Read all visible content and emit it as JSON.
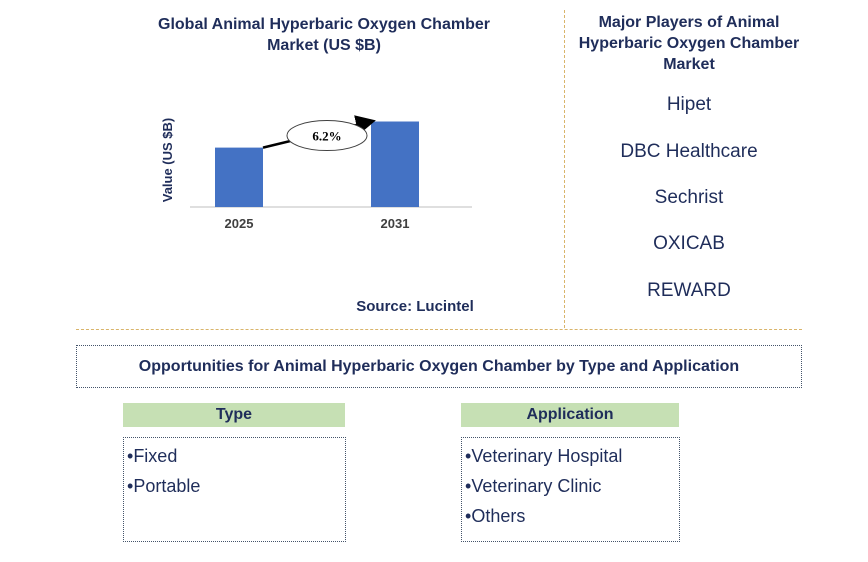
{
  "chart_data": {
    "type": "bar",
    "title": "Global Animal Hyperbaric Oxygen Chamber Market (US $B)",
    "ylabel": "Value (US $B)",
    "categories": [
      "2025",
      "2031"
    ],
    "values": [
      0.66,
      0.95
    ],
    "ylim": [
      0,
      1.0
    ],
    "annotation": "6.2%",
    "bar_color": "#4472c4",
    "grid": false
  },
  "source": "Source: Lucintel",
  "players": {
    "title": "Major Players of Animal Hyperbaric Oxygen Chamber Market",
    "items": [
      "Hipet",
      "DBC Healthcare",
      "Sechrist",
      "OXICAB",
      "REWARD"
    ]
  },
  "opportunities": {
    "title": "Opportunities for Animal Hyperbaric Oxygen Chamber by Type and Application",
    "type": {
      "header": "Type",
      "items": [
        "Fixed",
        "Portable"
      ]
    },
    "application": {
      "header": "Application",
      "items": [
        "Veterinary Hospital",
        "Veterinary Clinic",
        "Others"
      ]
    }
  },
  "colors": {
    "title": "#1f2d5a",
    "bar": "#4472c4",
    "header_bg": "#c6e0b4",
    "divider": "#d9b46a"
  }
}
